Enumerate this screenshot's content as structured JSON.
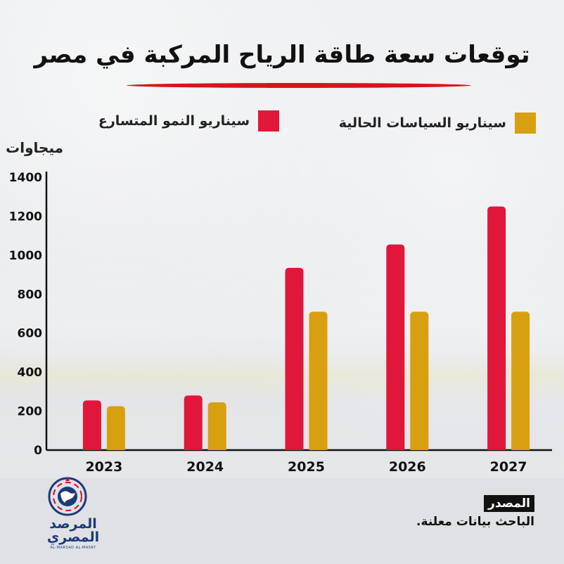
{
  "title": "توقعات سعة طاقة الرياح المركبة في مصر",
  "legend": {
    "policy": "سيناريو السياسات الحالية",
    "growth": "سيناريو النمو المتسارع"
  },
  "unit": "ميجاوات",
  "source": {
    "tag": "المصدر",
    "text": "الباحث بيانات معلنة."
  },
  "logo": {
    "line1": "المرصد",
    "line2": "المصري",
    "sub": "AL-MARSAD AL-MASRY"
  },
  "colors": {
    "growth": "#e0173b",
    "policy": "#d8a010",
    "title_underline": "#d7141c",
    "axis": "#111111"
  },
  "chart_data": {
    "type": "bar",
    "categories": [
      "2023",
      "2024",
      "2025",
      "2026",
      "2027"
    ],
    "series": [
      {
        "name": "سيناريو النمو المتسارع",
        "values": [
          255,
          280,
          935,
          1055,
          1250
        ]
      },
      {
        "name": "سيناريو السياسات الحالية",
        "values": [
          225,
          245,
          710,
          710,
          710
        ]
      }
    ],
    "yticks": [
      0,
      200,
      400,
      600,
      800,
      1000,
      1200,
      1400
    ],
    "ylim": [
      0,
      1400
    ],
    "ylabel": "ميجاوات",
    "grid": false,
    "legend_position": "top"
  }
}
